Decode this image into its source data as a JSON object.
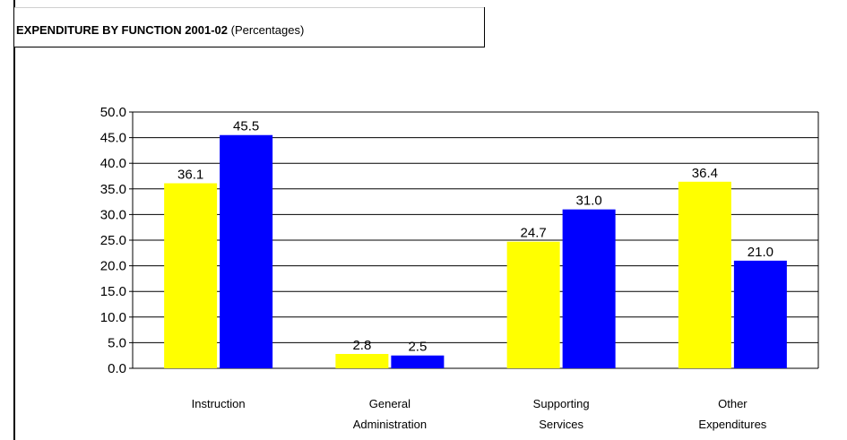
{
  "title": {
    "main": "EXPENDITURE BY FUNCTION 2001-02",
    "sub": "(Percentages)"
  },
  "chart_data": {
    "type": "bar",
    "title": "EXPENDITURE BY FUNCTION 2001-02 (Percentages)",
    "categories": [
      [
        "Instruction"
      ],
      [
        "General",
        "Administration"
      ],
      [
        "Supporting",
        "Services"
      ],
      [
        "Other",
        "Expenditures"
      ]
    ],
    "series": [
      {
        "color": "#ffff00",
        "values": [
          36.1,
          2.8,
          24.7,
          36.4
        ]
      },
      {
        "color": "#0000ff",
        "values": [
          45.5,
          2.5,
          31.0,
          21.0
        ]
      }
    ],
    "ylim": [
      0,
      50
    ],
    "yticks": [
      "0.0",
      "5.0",
      "10.0",
      "15.0",
      "20.0",
      "25.0",
      "30.0",
      "35.0",
      "40.0",
      "45.0",
      "50.0"
    ],
    "grid": true,
    "legend": "none"
  }
}
